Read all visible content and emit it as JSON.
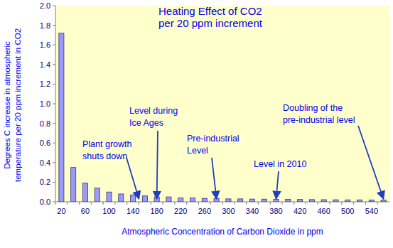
{
  "chart_data": {
    "type": "bar",
    "title": [
      "Heating Effect of CO2",
      "per 20 ppm increment"
    ],
    "x_label": "Atmospheric Concentration of Carbon Dioxide in ppm",
    "y_label": [
      "Degrees C increase in atmospheric",
      "temperature per 20 ppm increment in CO2"
    ],
    "categories": [
      "20",
      null,
      "60",
      null,
      "100",
      null,
      "140",
      null,
      "180",
      null,
      "220",
      null,
      "260",
      null,
      "300",
      null,
      "340",
      null,
      "380",
      null,
      "420",
      null,
      "460",
      null,
      "500",
      null,
      "540",
      null
    ],
    "values": [
      1.72,
      0.35,
      0.19,
      0.14,
      0.1,
      0.08,
      0.07,
      0.06,
      0.05,
      0.05,
      0.04,
      0.04,
      0.035,
      0.035,
      0.03,
      0.03,
      0.028,
      0.027,
      0.026,
      0.025,
      0.024,
      0.023,
      0.022,
      0.021,
      0.02,
      0.02,
      0.019,
      0.018
    ],
    "color": "#9999ff",
    "ylim": [
      0,
      2
    ],
    "yticks": [
      {
        "value": 0,
        "label": "0.0"
      },
      0.2,
      0.4,
      0.6,
      0.8,
      {
        "value": 1,
        "label": "1.0"
      },
      1.2,
      1.4,
      1.6,
      1.8,
      {
        "value": 2,
        "label": "2.0"
      }
    ],
    "grid": false,
    "annotations": [
      {
        "text": [
          "Plant growth",
          "shuts down"
        ],
        "x": 150
      },
      {
        "text": [
          "Level during",
          "Ice Ages"
        ],
        "x": 180
      },
      {
        "text": [
          "Pre-industrial",
          "Level"
        ],
        "x": 280
      },
      {
        "text": [
          "Level  in 2010"
        ],
        "x": 380
      },
      {
        "text": [
          "Doubling of the",
          "pre-industrial level"
        ],
        "x": 560
      }
    ]
  }
}
